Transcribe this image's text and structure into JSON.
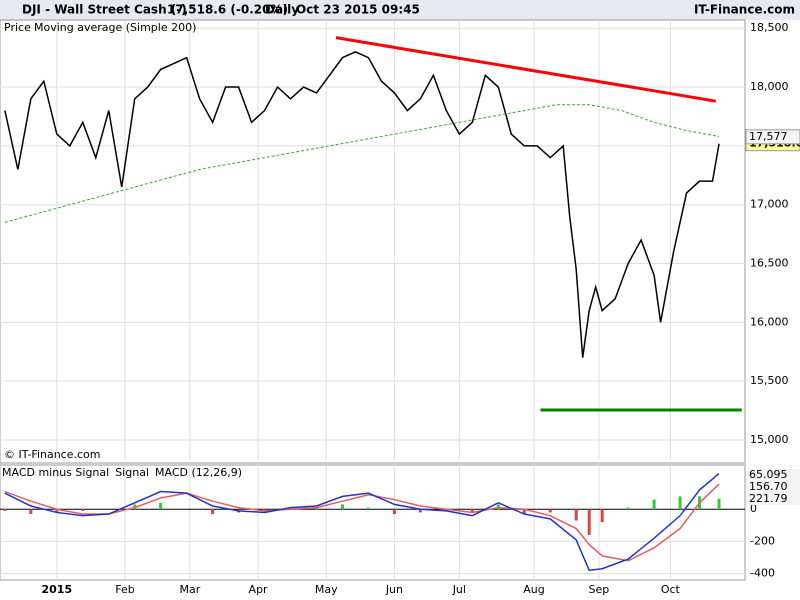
{
  "header": {
    "symbol": "DJI - Wall Street Cash (-)",
    "quote": "17,518.6 (-0.20%)",
    "period": "Daily",
    "datetime": "Oct 23 2015 09:45",
    "brand": "IT-Finance.com"
  },
  "chart_data": [
    {
      "type": "line",
      "annotation": "© IT-Finance.com",
      "xlim": [
        -1.5,
        228
      ],
      "ylim": [
        14830,
        18570
      ],
      "yticks": [
        {
          "value": 15000,
          "label": "15,000"
        },
        {
          "value": 15500,
          "label": "15,500"
        },
        {
          "value": 16000,
          "label": "16,000"
        },
        {
          "value": 16500,
          "label": "16,500"
        },
        {
          "value": 17000,
          "label": "17,000"
        },
        {
          "value": 17500,
          "label": "17,500"
        },
        {
          "value": 18000,
          "label": "18,000"
        },
        {
          "value": 18500,
          "label": "18,500"
        }
      ],
      "grid": true,
      "series": [
        {
          "name": "Price",
          "color": "#000000",
          "last_label": {
            "value": 17518.6,
            "label": "17,518.6"
          },
          "x": [
            0,
            4,
            8,
            12,
            16,
            20,
            24,
            28,
            32,
            36,
            40,
            44,
            48,
            52,
            56,
            60,
            64,
            68,
            72,
            76,
            80,
            84,
            88,
            92,
            96,
            100,
            104,
            108,
            112,
            116,
            120,
            124,
            128,
            132,
            136,
            140,
            144,
            148,
            152,
            156,
            160,
            164,
            168,
            172,
            174,
            176,
            178,
            180,
            182,
            184,
            188,
            192,
            196,
            200,
            202,
            206,
            210,
            214,
            218,
            220
          ],
          "values": [
            17800,
            17300,
            17900,
            18050,
            17600,
            17500,
            17700,
            17400,
            17800,
            17150,
            17900,
            18000,
            18150,
            18200,
            18250,
            17900,
            17700,
            18000,
            18000,
            17700,
            17800,
            18000,
            17900,
            18000,
            17950,
            18100,
            18250,
            18300,
            18250,
            18050,
            17950,
            17800,
            17900,
            18100,
            17800,
            17600,
            17700,
            18100,
            18000,
            17600,
            17500,
            17500,
            17400,
            17500,
            16900,
            16450,
            15700,
            16100,
            16300,
            16100,
            16200,
            16500,
            16700,
            16400,
            16000,
            16600,
            17100,
            17200,
            17200,
            17518.6
          ]
        },
        {
          "name": "Moving average (Simple 200)",
          "color": "#33aa33",
          "dashed": true,
          "last_label": {
            "value": 17577,
            "label": "17,577"
          },
          "x": [
            0,
            20,
            40,
            60,
            80,
            100,
            120,
            140,
            160,
            170,
            180,
            190,
            200,
            210,
            220
          ],
          "values": [
            16850,
            17000,
            17150,
            17300,
            17400,
            17500,
            17600,
            17700,
            17800,
            17850,
            17850,
            17800,
            17700,
            17630,
            17580
          ]
        }
      ],
      "trend_lines": [
        {
          "color": "#ff0000",
          "x": [
            102,
            219
          ],
          "values": [
            18420,
            17880
          ]
        },
        {
          "color": "#008000",
          "x": [
            165,
            227
          ],
          "values": [
            15255,
            15255
          ]
        }
      ]
    },
    {
      "type": "macd",
      "xlim": [
        -1.5,
        228
      ],
      "ylim": [
        -440,
        275
      ],
      "yticks": [
        0,
        -200,
        -400
      ],
      "xticks": [
        {
          "value": 16,
          "label": "2015"
        },
        {
          "value": 37,
          "label": "Feb"
        },
        {
          "value": 57,
          "label": "Mar"
        },
        {
          "value": 78,
          "label": "Apr"
        },
        {
          "value": 99,
          "label": "May"
        },
        {
          "value": 120,
          "label": "Jun"
        },
        {
          "value": 140,
          "label": "Jul"
        },
        {
          "value": 163,
          "label": "Aug"
        },
        {
          "value": 183,
          "label": "Sep"
        },
        {
          "value": 205,
          "label": "Oct"
        }
      ],
      "x": [
        0,
        8,
        16,
        24,
        32,
        40,
        48,
        56,
        64,
        72,
        80,
        88,
        96,
        104,
        112,
        120,
        128,
        136,
        144,
        152,
        160,
        168,
        176,
        180,
        184,
        192,
        200,
        208,
        214,
        220
      ],
      "series": [
        {
          "name": "MACD minus Signal",
          "color": "#33cc33",
          "style": "histogram",
          "last_label": "65.095",
          "values": [
            -10,
            -30,
            -20,
            -10,
            0,
            30,
            40,
            0,
            -30,
            -20,
            -10,
            10,
            10,
            30,
            10,
            -30,
            -20,
            -10,
            -20,
            30,
            -30,
            -20,
            -70,
            -160,
            -80,
            10,
            60,
            80,
            80,
            65.095
          ]
        },
        {
          "name": "Signal",
          "color": "#e06060",
          "style": "line",
          "last_label": "156.70",
          "values": [
            110,
            50,
            0,
            -30,
            -30,
            10,
            70,
            100,
            50,
            10,
            -10,
            0,
            10,
            50,
            90,
            60,
            20,
            0,
            -20,
            10,
            0,
            -40,
            -120,
            -220,
            -290,
            -320,
            -240,
            -120,
            40,
            156.7
          ]
        },
        {
          "name": "MACD (12,26,9)",
          "color": "#2233cc",
          "style": "line",
          "last_label": "221.79",
          "values": [
            100,
            20,
            -20,
            -40,
            -30,
            40,
            110,
            100,
            20,
            -10,
            -20,
            10,
            20,
            80,
            100,
            30,
            0,
            -10,
            -40,
            40,
            -30,
            -60,
            -190,
            -380,
            -370,
            -310,
            -180,
            -40,
            120,
            221.79
          ]
        }
      ]
    }
  ]
}
